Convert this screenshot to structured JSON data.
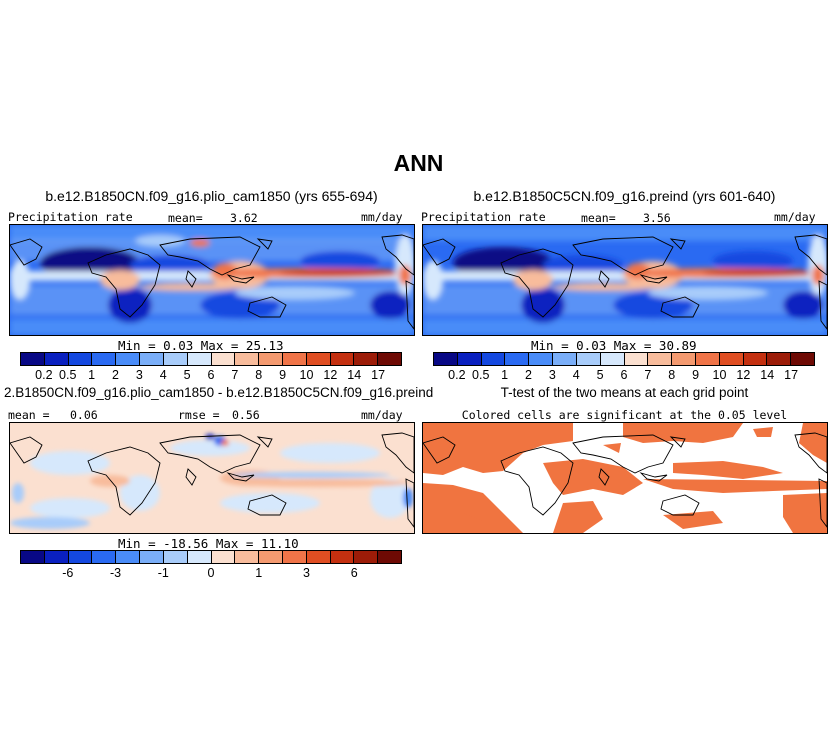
{
  "title": "ANN",
  "panels": {
    "tl": {
      "case": "b.e12.B1850CN.f09_g16.plio_cam1850 (yrs 655-694)",
      "variable": "Precipitation rate",
      "mean_label": "mean=",
      "mean_value": "3.62",
      "units": "mm/day",
      "minmax": "Min =    0.03  Max =   25.13"
    },
    "tr": {
      "case": "b.e12.B1850C5CN.f09_g16.preind (yrs 601-640)",
      "variable": "Precipitation rate",
      "mean_label": "mean=",
      "mean_value": "3.56",
      "units": "mm/day",
      "minmax": "Min =    0.03  Max =   30.89"
    },
    "bl": {
      "case": "2.B1850CN.f09_g16.plio_cam1850 - b.e12.B1850C5CN.f09_g16.preind",
      "mean_label": "mean =",
      "mean_value": "0.06",
      "rmse_label": "rmse =",
      "rmse_value": "0.56",
      "units": "mm/day",
      "minmax": "Min = -18.56  Max =   11.10"
    },
    "br": {
      "case": "T-test of the two means at each grid point",
      "subtitle": "Colored cells are significant at the 0.05 level"
    }
  },
  "colorbars": {
    "precip": {
      "colors": [
        "#080885",
        "#0a20c0",
        "#1448e0",
        "#2a6af2",
        "#4a8cf8",
        "#7aaef8",
        "#a8ccfa",
        "#d6e8fc",
        "#fbe0d0",
        "#f8bc9c",
        "#f49a70",
        "#f07448",
        "#e04e22",
        "#c43010",
        "#9c1c08",
        "#6e0a04"
      ],
      "ticks": [
        "0.2",
        "0.5",
        "1",
        "2",
        "3",
        "4",
        "5",
        "6",
        "7",
        "8",
        "9",
        "10",
        "12",
        "14",
        "17"
      ]
    },
    "diff": {
      "colors": [
        "#080885",
        "#0a20c0",
        "#1448e0",
        "#2a6af2",
        "#4a8cf8",
        "#7aaef8",
        "#a8ccfa",
        "#d6e8fc",
        "#fbe0d0",
        "#f8bc9c",
        "#f49a70",
        "#f07448",
        "#e04e22",
        "#c43010",
        "#9c1c08",
        "#6e0a04"
      ],
      "ticks": [
        {
          "label": "-6",
          "boundary": 2
        },
        {
          "label": "-3",
          "boundary": 4
        },
        {
          "label": "-1",
          "boundary": 6
        },
        {
          "label": "0",
          "boundary": 8
        },
        {
          "label": "1",
          "boundary": 10
        },
        {
          "label": "3",
          "boundary": 12
        },
        {
          "label": "6",
          "boundary": 14
        }
      ]
    }
  },
  "significance_color": "#f07440"
}
